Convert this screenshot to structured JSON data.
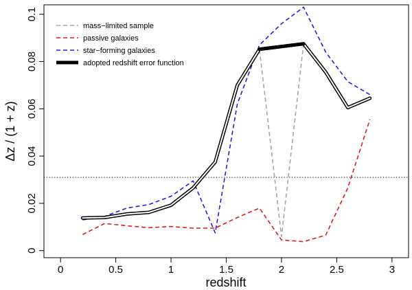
{
  "chart_data": {
    "type": "line",
    "xlabel": "redshift",
    "ylabel": "Δz / (1 + z)",
    "xlim": [
      -0.15,
      3.15
    ],
    "ylim": [
      -0.003,
      0.104
    ],
    "x_ticks": [
      0,
      0.5,
      1,
      1.5,
      2,
      2.5,
      3
    ],
    "x_tick_labels": [
      "0",
      "0.5",
      "1",
      "1.5",
      "2",
      "2.5",
      "3"
    ],
    "y_ticks": [
      0,
      0.02,
      0.04,
      0.06,
      0.08,
      0.1
    ],
    "y_tick_labels": [
      "0",
      "0.02",
      "0.04",
      "0.06",
      "0.08",
      "0.1"
    ],
    "grid": false,
    "legend_position": "top-left",
    "reference_line": {
      "y": 0.031,
      "style": "dotted",
      "color": "#000000"
    },
    "series": [
      {
        "name": "mass−limited sample",
        "style": "dashed",
        "color": "#a6a6a6",
        "x": [
          0.2,
          0.4,
          0.6,
          0.8,
          1.0,
          1.2,
          1.4,
          1.6,
          1.8,
          2.0,
          2.2,
          2.4,
          2.6,
          2.8
        ],
        "y": [
          0.0138,
          0.014,
          0.0155,
          0.0162,
          0.0192,
          0.0265,
          0.0375,
          0.07,
          0.0852,
          0.006,
          0.0875,
          0.0755,
          0.0605,
          0.0645
        ]
      },
      {
        "name": "passive galaxies",
        "style": "dashed",
        "color": "#e31a1c",
        "x": [
          0.2,
          0.4,
          0.6,
          0.8,
          1.0,
          1.2,
          1.4,
          1.6,
          1.8,
          2.0,
          2.2,
          2.4,
          2.6,
          2.8
        ],
        "y": [
          0.0068,
          0.0115,
          0.0105,
          0.0097,
          0.0102,
          0.0095,
          0.0095,
          0.014,
          0.018,
          0.0045,
          0.0038,
          0.0065,
          0.0265,
          0.0555
        ]
      },
      {
        "name": "star−forming galaxies",
        "style": "dashed",
        "color": "#3b10e0",
        "x": [
          0.2,
          0.4,
          0.6,
          0.8,
          1.0,
          1.2,
          1.4,
          1.6,
          1.8,
          2.0,
          2.2,
          2.4,
          2.6,
          2.8
        ],
        "y": [
          0.013,
          0.0145,
          0.018,
          0.0195,
          0.023,
          0.0295,
          0.0075,
          0.062,
          0.087,
          0.096,
          0.103,
          0.084,
          0.0715,
          0.066
        ]
      },
      {
        "name": "adopted redshift error function",
        "style": "solid-thick",
        "color": "#000000",
        "x": [
          0.2,
          0.4,
          0.6,
          0.8,
          1.0,
          1.2,
          1.4,
          1.6,
          1.8,
          2.2,
          2.4,
          2.6,
          2.8
        ],
        "y": [
          0.0138,
          0.014,
          0.0155,
          0.0162,
          0.0192,
          0.0265,
          0.0375,
          0.07,
          0.0852,
          0.0875,
          0.0755,
          0.0605,
          0.0645
        ]
      }
    ]
  }
}
